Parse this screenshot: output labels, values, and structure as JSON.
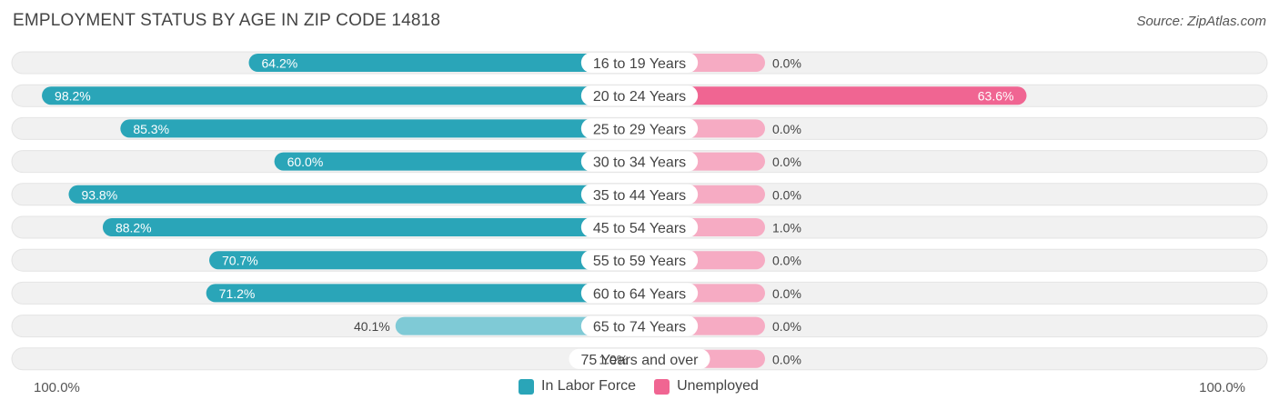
{
  "title": "EMPLOYMENT STATUS BY AGE IN ZIP CODE 14818",
  "source": "Source: ZipAtlas.com",
  "colors": {
    "labor_strong": "#2aa5b8",
    "labor_light": "#7fcad6",
    "unemployed_strong": "#f06592",
    "unemployed_light": "#f6abc3",
    "row_bg": "#f1f1f1"
  },
  "chart_data": {
    "type": "bar",
    "orientation": "diverging-horizontal",
    "categories": [
      "16 to 19 Years",
      "20 to 24 Years",
      "25 to 29 Years",
      "30 to 34 Years",
      "35 to 44 Years",
      "45 to 54 Years",
      "55 to 59 Years",
      "60 to 64 Years",
      "65 to 74 Years",
      "75 Years and over"
    ],
    "series": [
      {
        "name": "In Labor Force",
        "values": [
          64.2,
          98.2,
          85.3,
          60.0,
          93.8,
          88.2,
          70.7,
          71.2,
          40.1,
          1.0
        ],
        "labels": [
          "64.2%",
          "98.2%",
          "85.3%",
          "60.0%",
          "93.8%",
          "88.2%",
          "70.7%",
          "71.2%",
          "40.1%",
          "1.0%"
        ]
      },
      {
        "name": "Unemployed",
        "values": [
          0.0,
          63.6,
          0.0,
          0.0,
          0.0,
          1.0,
          0.0,
          0.0,
          0.0,
          0.0
        ],
        "labels": [
          "0.0%",
          "63.6%",
          "0.0%",
          "0.0%",
          "0.0%",
          "1.0%",
          "0.0%",
          "0.0%",
          "0.0%",
          "0.0%"
        ]
      }
    ],
    "xlim": [
      -100,
      100
    ],
    "axis_left_label": "100.0%",
    "axis_right_label": "100.0%",
    "legend_position": "bottom-center"
  }
}
